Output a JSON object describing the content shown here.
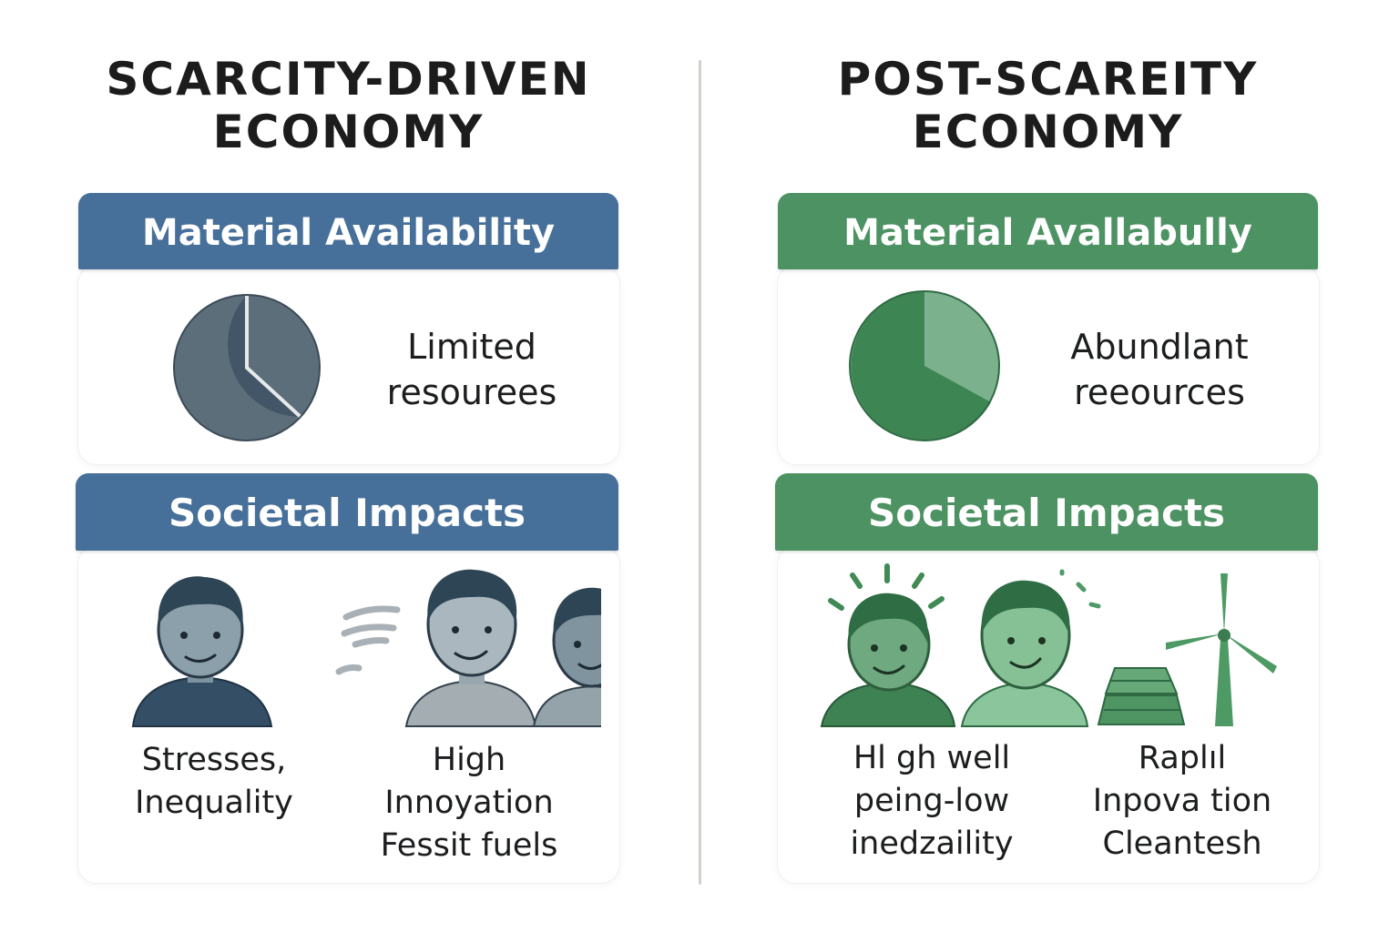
{
  "left": {
    "title_line1": "SCARCITY-DRIVEN",
    "title_line2": "ECONOMY",
    "accent_color": "#46709a",
    "material_title": "Material Availability",
    "resource_line1": "Limited",
    "resource_line2": "resourees",
    "societal_title": "Societal Impacts",
    "impact_a": [
      "Stresses,",
      "Inequality"
    ],
    "impact_b": [
      "High",
      "Innoyation",
      "Fessit fuels"
    ]
  },
  "right": {
    "title_line1": "POST-SCAREITY",
    "title_line2": "ECONOMY",
    "accent_color": "#4d9262",
    "material_title": "Material Avallabully",
    "resource_line1": "Abundlant",
    "resource_line2": "reeources",
    "societal_title": "Societal Impacts",
    "impact_a": [
      "Hl gh well",
      "peing-low",
      "inedzaility"
    ],
    "impact_b": [
      "Raplıl",
      "Inpova tion",
      "Cleantesh"
    ]
  },
  "icons": {
    "left_pie": "pie-chart-icon",
    "right_pie": "pie-chart-icon",
    "left_scene": [
      "stressed-person-icon",
      "stress-lines-icon",
      "smiling-person-icon",
      "smiling-person-icon"
    ],
    "right_scene": [
      "happy-person-icon",
      "smiling-person-icon",
      "solar-panel-icon",
      "wind-turbine-icon"
    ]
  }
}
